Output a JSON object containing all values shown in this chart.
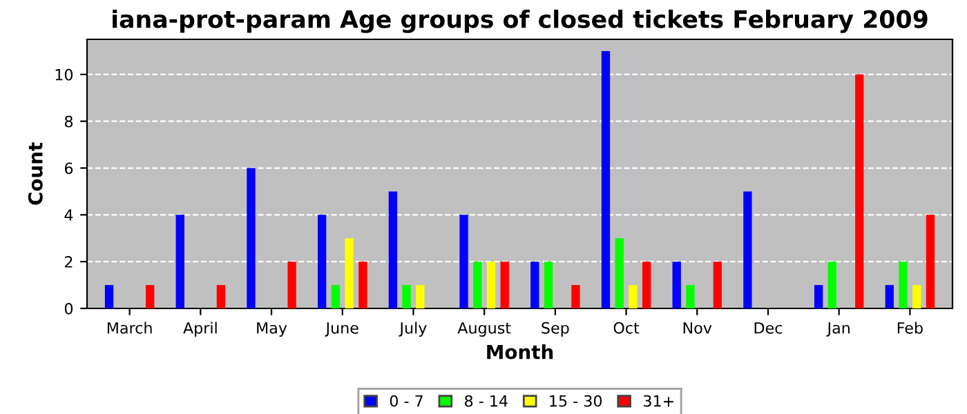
{
  "chart_data": {
    "type": "bar",
    "title": "iana-prot-param Age groups of closed tickets February 2009",
    "xlabel": "Month",
    "ylabel": "Count",
    "categories": [
      "March",
      "April",
      "May",
      "June",
      "July",
      "August",
      "Sep",
      "Oct",
      "Nov",
      "Dec",
      "Jan",
      "Feb"
    ],
    "series": [
      {
        "name": "0 - 7",
        "color": "#0000ff",
        "values": [
          1,
          4,
          6,
          4,
          5,
          4,
          2,
          11,
          2,
          5,
          1,
          1
        ]
      },
      {
        "name": "8 - 14",
        "color": "#00ff00",
        "values": [
          null,
          null,
          null,
          1,
          1,
          2,
          2,
          3,
          1,
          null,
          2,
          2
        ]
      },
      {
        "name": "15 - 30",
        "color": "#ffff00",
        "values": [
          null,
          null,
          null,
          3,
          1,
          2,
          null,
          1,
          null,
          null,
          null,
          1
        ]
      },
      {
        "name": "31+",
        "color": "#ff0000",
        "values": [
          1,
          1,
          2,
          2,
          null,
          2,
          1,
          2,
          2,
          null,
          10,
          4
        ]
      }
    ],
    "ylim": [
      0,
      11.5
    ],
    "yticks": [
      0,
      2,
      4,
      6,
      8,
      10
    ],
    "grid": "y",
    "legend": "bottom"
  }
}
